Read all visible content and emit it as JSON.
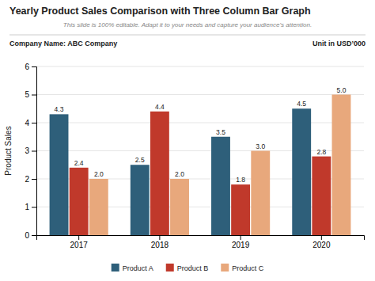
{
  "chart_data": {
    "type": "bar",
    "title": "Yearly Product Sales Comparison with Three Column Bar Graph",
    "subtitle": "This slide is 100% editable. Adapt it to your needs and capture your audience's attention.",
    "annotations": [
      "Company Name: ABC Company",
      "Unit in USD’000"
    ],
    "ylabel": "Product Sales",
    "categories": [
      "2017",
      "2018",
      "2019",
      "2020"
    ],
    "series": [
      {
        "name": "Product A",
        "color": "#2e5f7a",
        "values": [
          4.3,
          2.5,
          3.5,
          4.5
        ]
      },
      {
        "name": "Product B",
        "color": "#c0392b",
        "values": [
          2.4,
          4.4,
          1.8,
          2.8
        ]
      },
      {
        "name": "Product C",
        "color": "#e8a87c",
        "values": [
          2.0,
          2.0,
          3.0,
          5.0
        ],
        "value_labels": [
          "2.0",
          "2.0",
          "3.0",
          "5.0"
        ]
      }
    ],
    "ylim": [
      0,
      6
    ],
    "yticks": [
      0,
      1,
      2,
      3,
      4,
      5,
      6
    ],
    "grid": true,
    "data_labels": true,
    "legend": "bottom"
  }
}
